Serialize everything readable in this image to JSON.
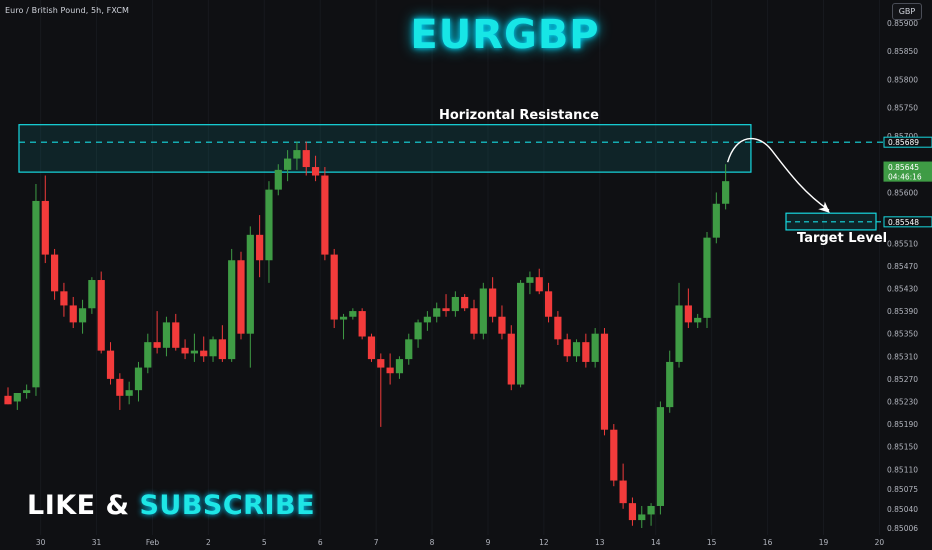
{
  "header": {
    "symbol_info": "Euro / British Pound, 5h, FXCM",
    "currency": "GBP"
  },
  "overlay": {
    "title": "EURGBP",
    "cta_like": "LIKE &",
    "cta_subscribe": "SUBSCRIBE",
    "resistance_label": "Horizontal Resistance",
    "target_label": "Target Level"
  },
  "colors": {
    "background": "#0f1013",
    "up": "#3f9c45",
    "down": "#f23b3b",
    "zone": "#17d9e0",
    "current_price_bg": "#3f9c45"
  },
  "chart_data": {
    "type": "candlestick",
    "timeframe": "5h",
    "y_ticks": [
      0.85006,
      0.8504,
      0.85075,
      0.8511,
      0.8515,
      0.8519,
      0.8523,
      0.8527,
      0.8531,
      0.8535,
      0.8539,
      0.8543,
      0.8547,
      0.8551,
      0.8555,
      0.856,
      0.8564,
      0.857,
      0.8575,
      0.858,
      0.8585,
      0.859
    ],
    "y_tick_labels": [
      "0.85006",
      "0.85040",
      "0.85075",
      "0.85110",
      "0.85150",
      "0.85190",
      "0.85230",
      "0.85270",
      "0.85310",
      "0.85350",
      "0.85390",
      "0.85430",
      "0.85470",
      "0.85510",
      "0.85550",
      "0.85600",
      "0.85640",
      "0.85700",
      "0.85750",
      "0.85800",
      "0.85850",
      "0.85900"
    ],
    "x_labels": [
      {
        "label": "30",
        "index": 3.5
      },
      {
        "label": "31",
        "index": 9.5
      },
      {
        "label": "Feb",
        "index": 15.5
      },
      {
        "label": "2",
        "index": 21.5
      },
      {
        "label": "5",
        "index": 27.5
      },
      {
        "label": "6",
        "index": 33.5
      },
      {
        "label": "7",
        "index": 39.5
      },
      {
        "label": "8",
        "index": 45.5
      },
      {
        "label": "9",
        "index": 51.5
      },
      {
        "label": "12",
        "index": 57.5
      },
      {
        "label": "13",
        "index": 63.5
      },
      {
        "label": "14",
        "index": 69.5
      },
      {
        "label": "15",
        "index": 75.5
      },
      {
        "label": "16",
        "index": 81.5
      },
      {
        "label": "19",
        "index": 87.5
      },
      {
        "label": "20",
        "index": 93.5
      }
    ],
    "candles": [
      {
        "o": 0.8524,
        "h": 0.85255,
        "l": 0.85225,
        "c": 0.85225
      },
      {
        "o": 0.8523,
        "h": 0.85245,
        "l": 0.85215,
        "c": 0.85245
      },
      {
        "o": 0.85245,
        "h": 0.8526,
        "l": 0.85235,
        "c": 0.8525
      },
      {
        "o": 0.85255,
        "h": 0.85615,
        "l": 0.8524,
        "c": 0.85585
      },
      {
        "o": 0.85585,
        "h": 0.8563,
        "l": 0.85475,
        "c": 0.8549
      },
      {
        "o": 0.8549,
        "h": 0.855,
        "l": 0.8541,
        "c": 0.85425
      },
      {
        "o": 0.85425,
        "h": 0.8544,
        "l": 0.8538,
        "c": 0.854
      },
      {
        "o": 0.854,
        "h": 0.85415,
        "l": 0.8536,
        "c": 0.8537
      },
      {
        "o": 0.8537,
        "h": 0.8541,
        "l": 0.8535,
        "c": 0.85395
      },
      {
        "o": 0.85395,
        "h": 0.8545,
        "l": 0.85385,
        "c": 0.85445
      },
      {
        "o": 0.85445,
        "h": 0.8546,
        "l": 0.85315,
        "c": 0.8532
      },
      {
        "o": 0.8532,
        "h": 0.85335,
        "l": 0.8526,
        "c": 0.8527
      },
      {
        "o": 0.8527,
        "h": 0.8528,
        "l": 0.85215,
        "c": 0.8524
      },
      {
        "o": 0.8524,
        "h": 0.85265,
        "l": 0.85225,
        "c": 0.8525
      },
      {
        "o": 0.8525,
        "h": 0.853,
        "l": 0.8523,
        "c": 0.8529
      },
      {
        "o": 0.8529,
        "h": 0.8535,
        "l": 0.8528,
        "c": 0.85335
      },
      {
        "o": 0.85335,
        "h": 0.8539,
        "l": 0.85315,
        "c": 0.85325
      },
      {
        "o": 0.85325,
        "h": 0.8538,
        "l": 0.8531,
        "c": 0.8537
      },
      {
        "o": 0.8537,
        "h": 0.85385,
        "l": 0.8532,
        "c": 0.85325
      },
      {
        "o": 0.85325,
        "h": 0.8534,
        "l": 0.85305,
        "c": 0.85315
      },
      {
        "o": 0.85315,
        "h": 0.8535,
        "l": 0.853,
        "c": 0.8532
      },
      {
        "o": 0.8532,
        "h": 0.85345,
        "l": 0.853,
        "c": 0.8531
      },
      {
        "o": 0.8531,
        "h": 0.85345,
        "l": 0.853,
        "c": 0.8534
      },
      {
        "o": 0.8534,
        "h": 0.85365,
        "l": 0.853,
        "c": 0.85305
      },
      {
        "o": 0.85305,
        "h": 0.855,
        "l": 0.853,
        "c": 0.8548
      },
      {
        "o": 0.8548,
        "h": 0.85495,
        "l": 0.8534,
        "c": 0.8535
      },
      {
        "o": 0.8535,
        "h": 0.8554,
        "l": 0.8529,
        "c": 0.85525
      },
      {
        "o": 0.85525,
        "h": 0.8556,
        "l": 0.8545,
        "c": 0.8548
      },
      {
        "o": 0.8548,
        "h": 0.8562,
        "l": 0.8544,
        "c": 0.85605
      },
      {
        "o": 0.85605,
        "h": 0.8565,
        "l": 0.85595,
        "c": 0.8564
      },
      {
        "o": 0.8564,
        "h": 0.85675,
        "l": 0.8562,
        "c": 0.8566
      },
      {
        "o": 0.8566,
        "h": 0.8569,
        "l": 0.8564,
        "c": 0.85675
      },
      {
        "o": 0.85675,
        "h": 0.8569,
        "l": 0.8563,
        "c": 0.85645
      },
      {
        "o": 0.85645,
        "h": 0.85665,
        "l": 0.8562,
        "c": 0.8563
      },
      {
        "o": 0.8563,
        "h": 0.85645,
        "l": 0.8548,
        "c": 0.8549
      },
      {
        "o": 0.8549,
        "h": 0.855,
        "l": 0.8536,
        "c": 0.85375
      },
      {
        "o": 0.85375,
        "h": 0.85385,
        "l": 0.8534,
        "c": 0.8538
      },
      {
        "o": 0.8538,
        "h": 0.85395,
        "l": 0.85375,
        "c": 0.8539
      },
      {
        "o": 0.8539,
        "h": 0.85395,
        "l": 0.8534,
        "c": 0.85345
      },
      {
        "o": 0.85345,
        "h": 0.8535,
        "l": 0.853,
        "c": 0.85305
      },
      {
        "o": 0.85305,
        "h": 0.85315,
        "l": 0.85185,
        "c": 0.8529
      },
      {
        "o": 0.8529,
        "h": 0.85315,
        "l": 0.8526,
        "c": 0.8528
      },
      {
        "o": 0.8528,
        "h": 0.8531,
        "l": 0.8527,
        "c": 0.85305
      },
      {
        "o": 0.85305,
        "h": 0.8535,
        "l": 0.85295,
        "c": 0.8534
      },
      {
        "o": 0.8534,
        "h": 0.85375,
        "l": 0.85325,
        "c": 0.8537
      },
      {
        "o": 0.8537,
        "h": 0.8539,
        "l": 0.85355,
        "c": 0.8538
      },
      {
        "o": 0.8538,
        "h": 0.85405,
        "l": 0.8537,
        "c": 0.85395
      },
      {
        "o": 0.85395,
        "h": 0.8542,
        "l": 0.8538,
        "c": 0.8539
      },
      {
        "o": 0.8539,
        "h": 0.85425,
        "l": 0.8538,
        "c": 0.85415
      },
      {
        "o": 0.85415,
        "h": 0.8542,
        "l": 0.8539,
        "c": 0.85395
      },
      {
        "o": 0.85395,
        "h": 0.8541,
        "l": 0.8534,
        "c": 0.8535
      },
      {
        "o": 0.8535,
        "h": 0.8544,
        "l": 0.8534,
        "c": 0.8543
      },
      {
        "o": 0.8543,
        "h": 0.8545,
        "l": 0.8537,
        "c": 0.8538
      },
      {
        "o": 0.8538,
        "h": 0.854,
        "l": 0.8534,
        "c": 0.8535
      },
      {
        "o": 0.8535,
        "h": 0.85365,
        "l": 0.8525,
        "c": 0.8526
      },
      {
        "o": 0.8526,
        "h": 0.85445,
        "l": 0.85255,
        "c": 0.8544
      },
      {
        "o": 0.8544,
        "h": 0.8546,
        "l": 0.8542,
        "c": 0.8545
      },
      {
        "o": 0.8545,
        "h": 0.85465,
        "l": 0.8542,
        "c": 0.85425
      },
      {
        "o": 0.85425,
        "h": 0.8544,
        "l": 0.8537,
        "c": 0.8538
      },
      {
        "o": 0.8538,
        "h": 0.8539,
        "l": 0.8533,
        "c": 0.8534
      },
      {
        "o": 0.8534,
        "h": 0.8535,
        "l": 0.853,
        "c": 0.8531
      },
      {
        "o": 0.8531,
        "h": 0.8534,
        "l": 0.853,
        "c": 0.85335
      },
      {
        "o": 0.85335,
        "h": 0.8535,
        "l": 0.8529,
        "c": 0.853
      },
      {
        "o": 0.853,
        "h": 0.8536,
        "l": 0.8529,
        "c": 0.8535
      },
      {
        "o": 0.8535,
        "h": 0.8536,
        "l": 0.8517,
        "c": 0.8518
      },
      {
        "o": 0.8518,
        "h": 0.8519,
        "l": 0.8508,
        "c": 0.8509
      },
      {
        "o": 0.8509,
        "h": 0.8512,
        "l": 0.8504,
        "c": 0.8505
      },
      {
        "o": 0.8505,
        "h": 0.8506,
        "l": 0.8501,
        "c": 0.8502
      },
      {
        "o": 0.8502,
        "h": 0.85045,
        "l": 0.85006,
        "c": 0.8503
      },
      {
        "o": 0.8503,
        "h": 0.8505,
        "l": 0.8501,
        "c": 0.85045
      },
      {
        "o": 0.85045,
        "h": 0.8523,
        "l": 0.8503,
        "c": 0.8522
      },
      {
        "o": 0.8522,
        "h": 0.8532,
        "l": 0.8521,
        "c": 0.853
      },
      {
        "o": 0.853,
        "h": 0.8544,
        "l": 0.8529,
        "c": 0.854
      },
      {
        "o": 0.854,
        "h": 0.8543,
        "l": 0.8536,
        "c": 0.8537
      },
      {
        "o": 0.8537,
        "h": 0.85385,
        "l": 0.8536,
        "c": 0.85378
      },
      {
        "o": 0.85378,
        "h": 0.8553,
        "l": 0.8536,
        "c": 0.8552
      },
      {
        "o": 0.8552,
        "h": 0.856,
        "l": 0.8551,
        "c": 0.8558
      },
      {
        "o": 0.8558,
        "h": 0.8565,
        "l": 0.8557,
        "c": 0.8562
      }
    ],
    "price_axis_labels": [
      {
        "label": "0.85689",
        "value": 0.85689,
        "style": "zone"
      },
      {
        "label": "0.85645",
        "value": 0.85645,
        "style": "current"
      },
      {
        "label": "04:46:16",
        "value": 0.85628,
        "style": "timer"
      },
      {
        "label": "0.85548",
        "value": 0.85548,
        "style": "zone"
      }
    ],
    "resistance_zone": {
      "top": 0.8572,
      "bottom": 0.85636,
      "level": 0.85689,
      "from_index": -0.5,
      "to_index": 79.5
    },
    "target_zone": {
      "top": 0.85558,
      "bottom": 0.85539,
      "level": 0.85548,
      "from_index": 70.5,
      "to_index": 75.0
    },
    "title": "",
    "xlabel": "",
    "ylabel": ""
  }
}
